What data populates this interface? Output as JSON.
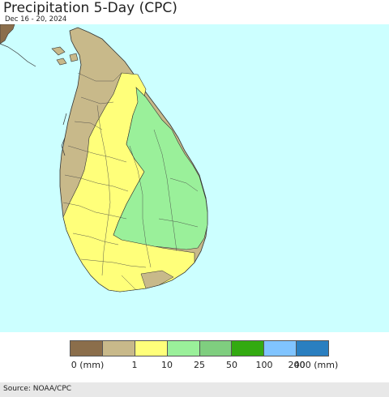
{
  "header": {
    "title": "Precipitation 5-Day (CPC)",
    "date_range": "Dec 16 - 20, 2024"
  },
  "map": {
    "ocean_color": "#ccffff",
    "land_colors": {
      "india_coast": "#8b6e4b",
      "level_1": "#c8b98a",
      "level_10": "#ffff7a",
      "level_25": "#9af09a"
    }
  },
  "legend": {
    "swatches": [
      {
        "color": "#8b6e4b"
      },
      {
        "color": "#c8b98a"
      },
      {
        "color": "#ffff7a"
      },
      {
        "color": "#9af09a"
      },
      {
        "color": "#7fce7f"
      },
      {
        "color": "#33aa11"
      },
      {
        "color": "#80c4ff"
      },
      {
        "color": "#2a7fc0"
      }
    ],
    "ticks": [
      "0 (mm)",
      "1",
      "10",
      "25",
      "50",
      "100",
      "200",
      "400 (mm)"
    ]
  },
  "footer": {
    "source": "Source: NOAA/CPC"
  }
}
